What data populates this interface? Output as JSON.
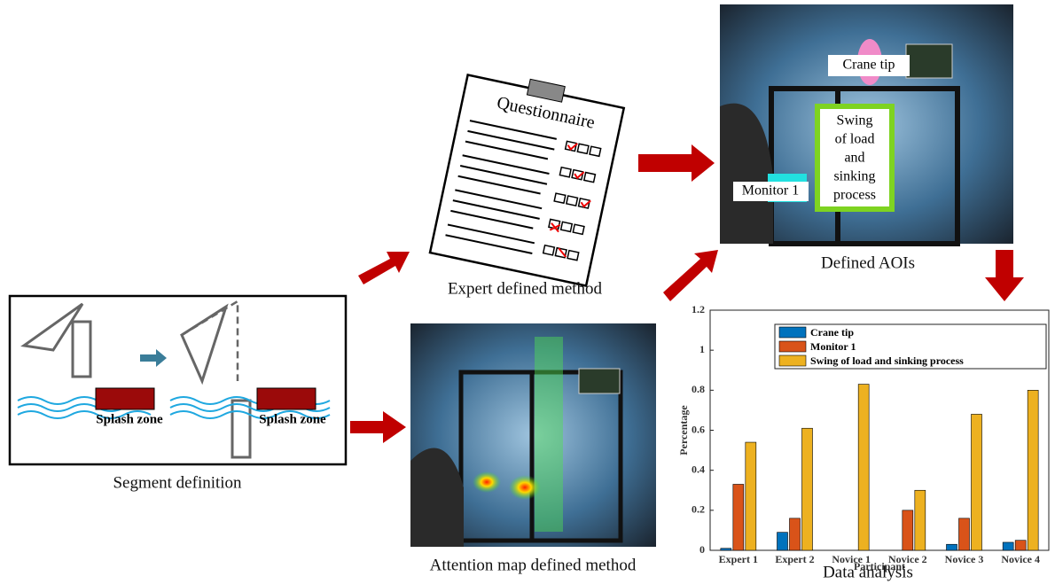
{
  "diagram": {
    "segment_caption": "Segment definition",
    "splash_left": "Splash zone",
    "splash_right": "Splash zone",
    "expert_caption": "Expert defined method",
    "questionnaire": "Questionnaire",
    "attention_caption": "Attention map defined method",
    "aoi_caption": "Defined AOIs",
    "aoi_crane_tip": "Crane tip",
    "aoi_monitor": "Monitor 1",
    "aoi_swing": [
      "Swing",
      "of load",
      "and",
      "sinking",
      "process"
    ],
    "analysis_caption": "Data analysis"
  },
  "chart_data": {
    "type": "bar",
    "xlabel": "Participant",
    "ylabel": "Percentage",
    "categories": [
      "Expert 1",
      "Expert 2",
      "Novice 1",
      "Novice 2",
      "Novice 3",
      "Novice 4"
    ],
    "series": [
      {
        "name": "Crane tip",
        "color": "#0072bd",
        "values": [
          0.01,
          0.09,
          0,
          0,
          0.03,
          0.04
        ]
      },
      {
        "name": "Monitor 1",
        "color": "#d95319",
        "values": [
          0.33,
          0.16,
          0,
          0.2,
          0.16,
          0.05
        ]
      },
      {
        "name": "Swing of load and sinking process",
        "color": "#edb120",
        "values": [
          0.54,
          0.61,
          0.83,
          0.3,
          0.68,
          0.8
        ]
      }
    ],
    "ylim": [
      0,
      1.2
    ],
    "yticks": [
      0,
      0.2,
      0.4,
      0.6,
      0.8,
      1,
      1.2
    ]
  }
}
